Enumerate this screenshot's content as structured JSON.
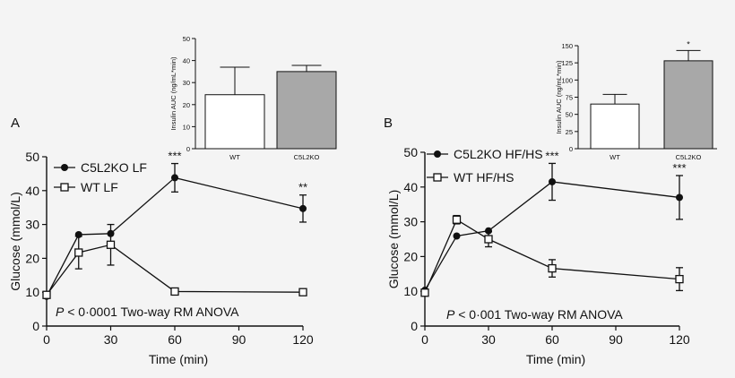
{
  "chart_data": [
    {
      "panel": "A",
      "type": "line",
      "x": [
        0,
        15,
        30,
        60,
        120
      ],
      "xlabel": "Time (min)",
      "ylabel": "Glucose (mmol/L)",
      "xlim": [
        0,
        120
      ],
      "ylim": [
        0,
        50
      ],
      "xticks": [
        0,
        30,
        60,
        90,
        120
      ],
      "yticks": [
        0,
        10,
        20,
        30,
        40,
        50
      ],
      "series": [
        {
          "name": "C5L2KO LF",
          "marker": "filled-circle",
          "values": [
            8.8,
            27.0,
            27.3,
            43.8,
            34.7
          ],
          "err": [
            0,
            0,
            0,
            4.2,
            4.0
          ]
        },
        {
          "name": "WT LF",
          "marker": "open-square",
          "values": [
            9.2,
            21.7,
            24.0,
            10.2,
            10.0
          ],
          "err": [
            0,
            4.8,
            6.0,
            0,
            0
          ]
        }
      ],
      "annotations": [
        {
          "x": 60,
          "text": "***"
        },
        {
          "x": 120,
          "text": "**"
        }
      ],
      "stat_text": {
        "p": "P",
        "rest": " < 0·0001 Two-way RM ANOVA"
      },
      "inset": {
        "type": "bar",
        "categories": [
          "WT",
          "C5L2KO"
        ],
        "values": [
          24.5,
          35.0
        ],
        "err": [
          12.5,
          2.8
        ],
        "ylabel": "Insulin AUC (ng/mL*min)",
        "ylim": [
          0,
          50
        ],
        "yticks": [
          0,
          10,
          20,
          30,
          40,
          50
        ],
        "colors": [
          "#ffffff",
          "#a8a8a8"
        ],
        "annotations": []
      }
    },
    {
      "panel": "B",
      "type": "line",
      "x": [
        0,
        15,
        30,
        60,
        120
      ],
      "xlabel": "Time (min)",
      "ylabel": "Glucose (mmol/L)",
      "xlim": [
        0,
        120
      ],
      "ylim": [
        0,
        50
      ],
      "xticks": [
        0,
        30,
        60,
        90,
        120
      ],
      "yticks": [
        0,
        10,
        20,
        30,
        40,
        50
      ],
      "series": [
        {
          "name": "C5L2KO HF/HS",
          "marker": "filled-circle",
          "values": [
            10.3,
            25.9,
            27.4,
            41.5,
            37.0
          ],
          "err": [
            0,
            0,
            0,
            5.3,
            6.3
          ]
        },
        {
          "name": "WT HF/HS",
          "marker": "open-square",
          "values": [
            9.6,
            30.6,
            25.0,
            16.6,
            13.5
          ],
          "err": [
            0,
            1.2,
            2.2,
            2.5,
            3.3
          ]
        }
      ],
      "annotations": [
        {
          "x": 60,
          "text": "***"
        },
        {
          "x": 120,
          "text": "***"
        }
      ],
      "stat_text": {
        "p": "P",
        "rest": " < 0·001 Two-way RM ANOVA"
      },
      "inset": {
        "type": "bar",
        "categories": [
          "WT",
          "C5L2KO"
        ],
        "values": [
          65,
          128
        ],
        "err": [
          14,
          15
        ],
        "ylabel": "Insulin AUC (ng/mL*min)",
        "ylim": [
          0,
          150
        ],
        "yticks": [
          0,
          25,
          50,
          75,
          100,
          125,
          150
        ],
        "colors": [
          "#ffffff",
          "#a8a8a8"
        ],
        "annotations": [
          {
            "index": 1,
            "text": "*"
          }
        ]
      }
    }
  ]
}
